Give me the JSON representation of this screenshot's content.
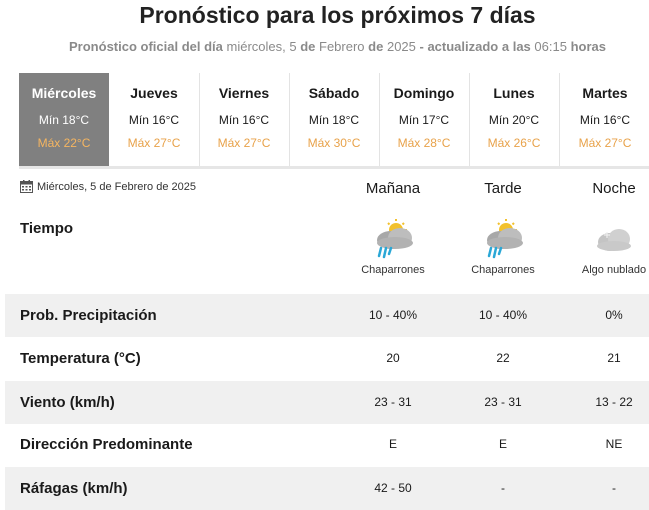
{
  "header": {
    "title": "Pronóstico para los próximos 7 días",
    "sub_prefix": "Pronóstico oficial del día",
    "sub_weekday": "miércoles, 5",
    "sub_de1": "de",
    "sub_month": "Febrero",
    "sub_de2": "de",
    "sub_year": "2025",
    "sub_updated": "- actualizado a las",
    "sub_time": "06:15",
    "sub_hours": "horas"
  },
  "days": [
    {
      "name": "Miércoles",
      "min": "Mín 18°C",
      "max": "Máx 22°C",
      "selected": true
    },
    {
      "name": "Jueves",
      "min": "Mín 16°C",
      "max": "Máx 27°C",
      "selected": false
    },
    {
      "name": "Viernes",
      "min": "Mín 16°C",
      "max": "Máx 27°C",
      "selected": false
    },
    {
      "name": "Sábado",
      "min": "Mín 18°C",
      "max": "Máx 30°C",
      "selected": false
    },
    {
      "name": "Domingo",
      "min": "Mín 17°C",
      "max": "Máx 28°C",
      "selected": false
    },
    {
      "name": "Lunes",
      "min": "Mín 20°C",
      "max": "Máx 26°C",
      "selected": false
    },
    {
      "name": "Martes",
      "min": "Mín 16°C",
      "max": "Máx 27°C",
      "selected": false
    }
  ],
  "detail": {
    "date": "Miércoles, 5 de Febrero de 2025",
    "periods": [
      "Mañana",
      "Tarde",
      "Noche"
    ],
    "tiempo_label": "Tiempo",
    "tiempo": [
      {
        "icon": "rain-showers-sun-cloud-icon",
        "desc": "Chaparrones"
      },
      {
        "icon": "rain-showers-sun-cloud-icon",
        "desc": "Chaparrones"
      },
      {
        "icon": "partly-cloudy-night-icon",
        "desc": "Algo nublado"
      }
    ],
    "rows": [
      {
        "label": "Prob. Precipitación",
        "values": [
          "10 - 40%",
          "10 - 40%",
          "0%"
        ]
      },
      {
        "label": "Temperatura (°C)",
        "values": [
          "20",
          "22",
          "21"
        ]
      },
      {
        "label": "Viento (km/h)",
        "values": [
          "23 - 31",
          "23 - 31",
          "13 - 22"
        ]
      },
      {
        "label": "Dirección Predominante",
        "values": [
          "E",
          "E",
          "NE"
        ]
      },
      {
        "label": "Ráfagas (km/h)",
        "values": [
          "42 - 50",
          "-",
          "-"
        ]
      }
    ]
  },
  "colors": {
    "selected_bg": "#808080",
    "max_temp": "#e8a24a",
    "row_shade": "#f0f0f0"
  }
}
